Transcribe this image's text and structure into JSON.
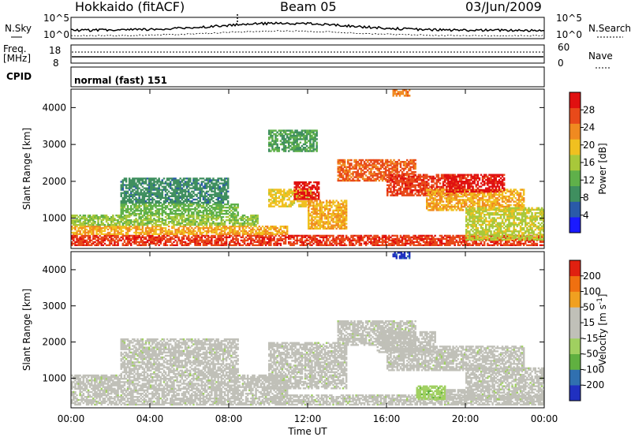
{
  "header": {
    "radar": "Hokkaido (fitACF)",
    "beam": "Beam 05",
    "date": "03/Jun/2009"
  },
  "top_panels": {
    "nsky_label": "N.Sky",
    "nsky_ticks": [
      "10^5",
      "10^0"
    ],
    "nsearch_label": "N.Search",
    "nsearch_ticks": [
      "10^5",
      "10^0"
    ],
    "freq_label": "Freq.",
    "freq_unit": "[MHz]",
    "freq_ticks": [
      "18",
      "8"
    ],
    "nave_label": "Nave",
    "nave_ticks": [
      "60",
      "0"
    ],
    "cpid_label": "CPID",
    "cpid_value": "normal (fast) 151"
  },
  "chart_data": [
    {
      "type": "heatmap",
      "title": "",
      "xlabel": "Time UT",
      "ylabel": "Slant Range [km]",
      "x_range": [
        "00:00",
        "24:00"
      ],
      "x_ticks": [
        "00:00",
        "04:00",
        "08:00",
        "12:00",
        "16:00",
        "20:00",
        "00:00"
      ],
      "y_range": [
        180,
        4500
      ],
      "y_ticks": [
        1000,
        2000,
        3000,
        4000
      ],
      "colorbar": {
        "label": "Power [dB]",
        "ticks": [
          4,
          8,
          12,
          16,
          20,
          24,
          28
        ],
        "range": [
          0,
          30
        ],
        "colors": [
          "#1a1aff",
          "#2a5aa8",
          "#3f8f5f",
          "#5fb04a",
          "#a8c83a",
          "#f0c020",
          "#f08a20",
          "#e84a1a",
          "#e01010"
        ]
      },
      "echo_regions": [
        {
          "t0": 0.0,
          "t1": 24.0,
          "r0": 250,
          "r1": 550,
          "level": 26
        },
        {
          "t0": 0.0,
          "t1": 11.0,
          "r0": 550,
          "r1": 800,
          "level": 20
        },
        {
          "t0": 0.0,
          "t1": 9.5,
          "r0": 800,
          "r1": 1100,
          "level": 14
        },
        {
          "t0": 2.5,
          "t1": 8.5,
          "r0": 1100,
          "r1": 1400,
          "level": 12
        },
        {
          "t0": 2.5,
          "t1": 8.0,
          "r0": 1400,
          "r1": 2100,
          "level": 8
        },
        {
          "t0": 10.0,
          "t1": 12.2,
          "r0": 1300,
          "r1": 1800,
          "level": 18
        },
        {
          "t0": 11.3,
          "t1": 12.6,
          "r0": 1500,
          "r1": 2000,
          "level": 28
        },
        {
          "t0": 12.0,
          "t1": 14.0,
          "r0": 700,
          "r1": 1500,
          "level": 20
        },
        {
          "t0": 13.5,
          "t1": 17.5,
          "r0": 2000,
          "r1": 2600,
          "level": 24
        },
        {
          "t0": 16.0,
          "t1": 20.0,
          "r0": 1600,
          "r1": 2200,
          "level": 26
        },
        {
          "t0": 18.0,
          "t1": 23.0,
          "r0": 1200,
          "r1": 1800,
          "level": 20
        },
        {
          "t0": 19.0,
          "t1": 22.0,
          "r0": 1700,
          "r1": 2200,
          "level": 28
        },
        {
          "t0": 20.0,
          "t1": 24.0,
          "r0": 400,
          "r1": 1300,
          "level": 16
        },
        {
          "t0": 16.3,
          "t1": 17.2,
          "r0": 4300,
          "r1": 4500,
          "level": 22
        },
        {
          "t0": 10.0,
          "t1": 12.5,
          "r0": 2800,
          "r1": 3400,
          "level": 10
        }
      ]
    },
    {
      "type": "heatmap",
      "title": "",
      "xlabel": "Time UT",
      "ylabel": "Slant Range [km]",
      "x_range": [
        "00:00",
        "24:00"
      ],
      "x_ticks": [
        "00:00",
        "04:00",
        "08:00",
        "12:00",
        "16:00",
        "20:00",
        "00:00"
      ],
      "y_range": [
        180,
        4500
      ],
      "y_ticks": [
        1000,
        2000,
        3000,
        4000
      ],
      "colorbar": {
        "label": "Velocity [m s^-1]",
        "ticks": [
          200,
          100,
          50,
          15,
          -15,
          -50,
          -100,
          -200
        ],
        "range": [
          -250,
          250
        ],
        "colors": [
          "#2030c0",
          "#3070b0",
          "#60b040",
          "#a0d060",
          "#c0c0b8",
          "#c0c0b8",
          "#f0a020",
          "#f07010",
          "#e02010"
        ]
      },
      "echo_regions": [
        {
          "t0": 0.0,
          "t1": 24.0,
          "r0": 250,
          "r1": 550,
          "level": 0
        },
        {
          "t0": 0.0,
          "t1": 11.0,
          "r0": 550,
          "r1": 1100,
          "level": 0
        },
        {
          "t0": 2.5,
          "t1": 8.5,
          "r0": 1100,
          "r1": 2100,
          "level": 0
        },
        {
          "t0": 10.0,
          "t1": 14.0,
          "r0": 700,
          "r1": 2000,
          "level": 0
        },
        {
          "t0": 13.5,
          "t1": 17.5,
          "r0": 1900,
          "r1": 2600,
          "level": 0
        },
        {
          "t0": 15.5,
          "t1": 18.5,
          "r0": 1700,
          "r1": 2300,
          "level": 35
        },
        {
          "t0": 16.0,
          "t1": 23.0,
          "r0": 1200,
          "r1": 1900,
          "level": 0
        },
        {
          "t0": 17.5,
          "t1": 19.0,
          "r0": 400,
          "r1": 800,
          "level": -60
        },
        {
          "t0": 19.0,
          "t1": 20.5,
          "r0": 400,
          "r1": 700,
          "level": 30
        },
        {
          "t0": 16.3,
          "t1": 17.2,
          "r0": 4300,
          "r1": 4500,
          "level": -220
        },
        {
          "t0": 20.0,
          "t1": 24.0,
          "r0": 400,
          "r1": 1300,
          "level": 0
        }
      ]
    }
  ]
}
